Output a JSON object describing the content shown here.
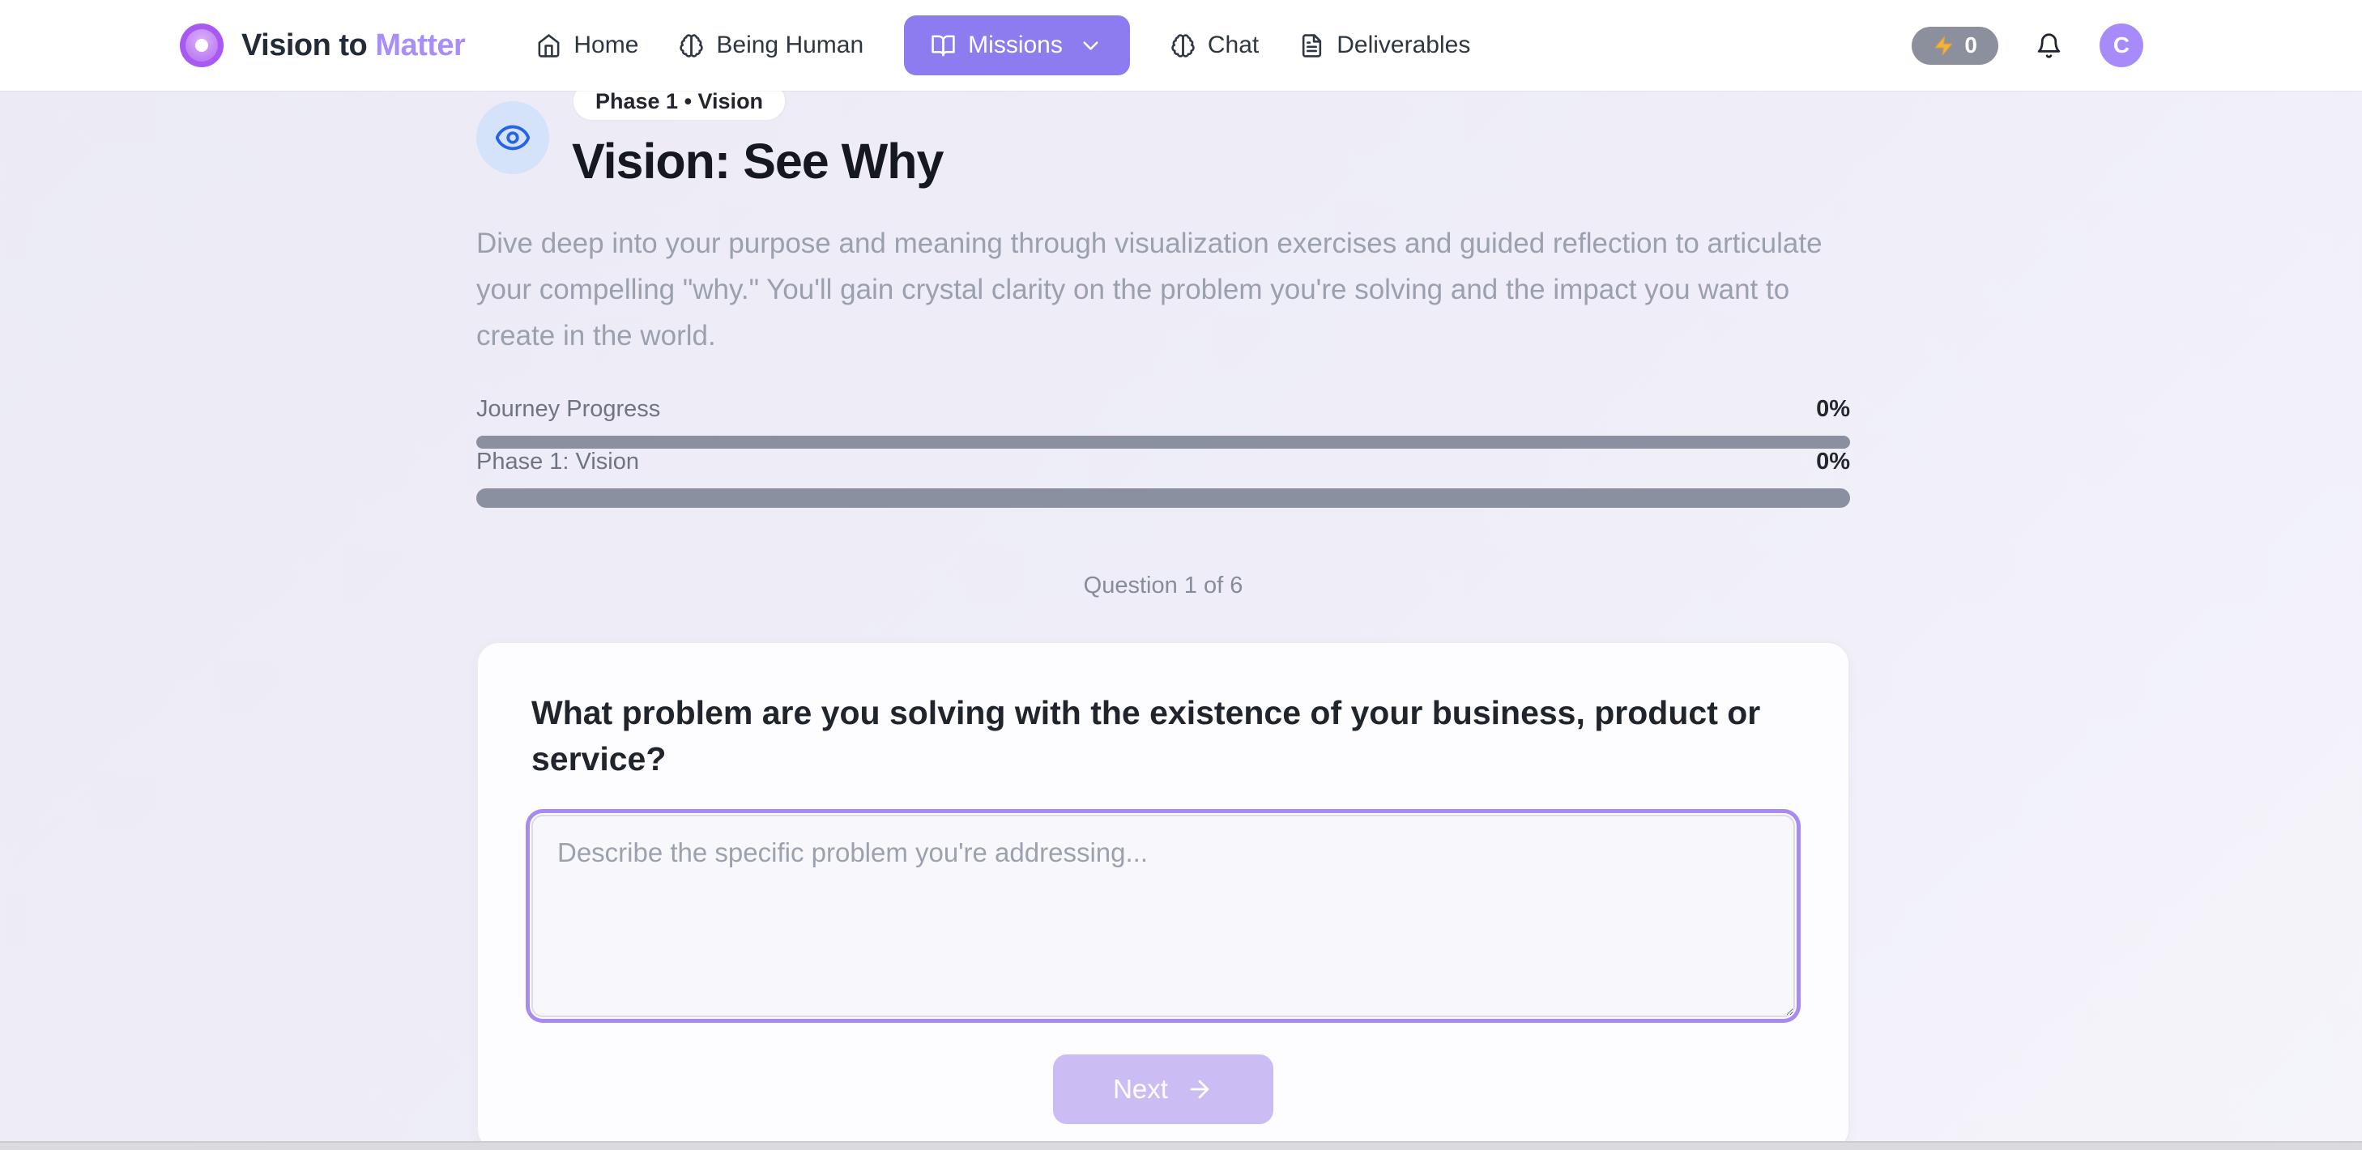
{
  "brand": {
    "name_primary": "Vision to",
    "name_accent": "Matter"
  },
  "nav": {
    "items": [
      {
        "label": "Home",
        "icon": "home-icon"
      },
      {
        "label": "Being Human",
        "icon": "brain-icon"
      },
      {
        "label": "Missions",
        "icon": "book-open-icon",
        "active": true
      },
      {
        "label": "Chat",
        "icon": "brain-icon"
      },
      {
        "label": "Deliverables",
        "icon": "file-text-icon"
      }
    ]
  },
  "topbar": {
    "energy_count": "0"
  },
  "user": {
    "avatar_initial": "C"
  },
  "mission": {
    "badge": "Phase 1 • Vision",
    "title": "Vision: See Why",
    "description": "Dive deep into your purpose and meaning through visualization exercises and guided reflection to articulate your compelling \"why.\" You'll gain crystal clarity on the problem you're solving and the impact you want to create in the world."
  },
  "progress": {
    "journey": {
      "label": "Journey Progress",
      "value": "0%",
      "percent": 0
    },
    "phase": {
      "label": "Phase 1: Vision",
      "value": "0%",
      "percent": 0
    }
  },
  "question": {
    "counter": "Question 1 of 6",
    "prompt": "What problem are you solving with the existence of your business, product or service?",
    "placeholder": "Describe the specific problem you're addressing...",
    "next_label": "Next"
  },
  "colors": {
    "accent_purple": "#8d7cf0",
    "accent_purple_light": "#cbbdf3",
    "avatar_purple": "#a78bfa",
    "bolt_amber": "#f2b33d",
    "eye_blue": "#2563eb",
    "progress_track": "#8b90a0",
    "page_background": "#eeedf6"
  }
}
